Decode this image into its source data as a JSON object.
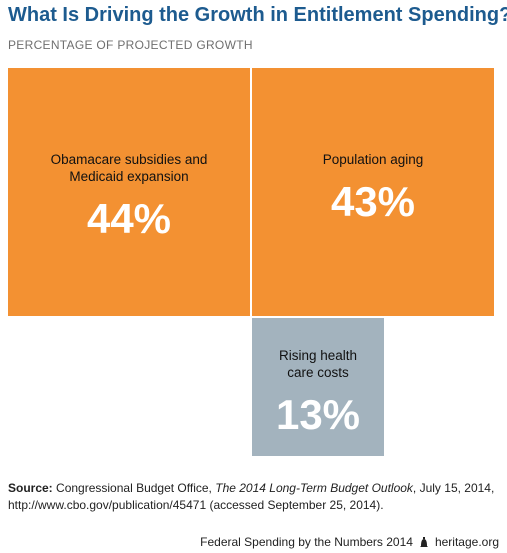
{
  "chart_data": {
    "type": "treemap",
    "title": "What Is Driving the Growth in Entitlement Spending?",
    "subtitle": "PERCENTAGE OF PROJECTED GROWTH",
    "cells": [
      {
        "label_lines": [
          "Obamacare subsidies and",
          "Medicaid expansion"
        ],
        "value": 44,
        "value_label": "44%",
        "color": "#f39132"
      },
      {
        "label_lines": [
          "Population aging"
        ],
        "value": 43,
        "value_label": "43%",
        "color": "#f39132"
      },
      {
        "label_lines": [
          "Rising health",
          "care costs"
        ],
        "value": 13,
        "value_label": "13%",
        "color": "#a3b3be"
      }
    ]
  },
  "source": {
    "prefix": "Source:",
    "text1": " Congressional Budget Office, ",
    "italic": "The 2014 Long-Term Budget Outlook",
    "text2": ", July 15, 2014, http://www.cbo.gov/publication/45471 (accessed September 25, 2014)."
  },
  "footer": {
    "publication": "Federal Spending by the Numbers 2014",
    "site": "heritage.org"
  }
}
